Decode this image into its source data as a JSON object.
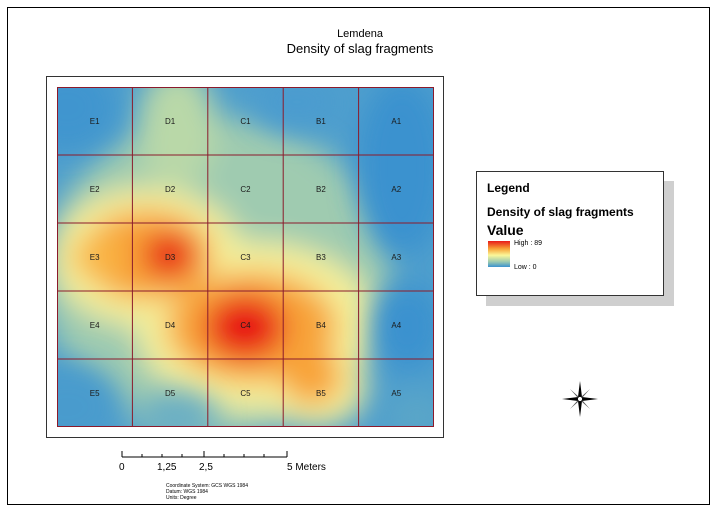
{
  "map": {
    "title": "Lemdena",
    "subtitle": "Density of slag fragments",
    "grid": {
      "rows": [
        [
          "E1",
          "D1",
          "C1",
          "B1",
          "A1"
        ],
        [
          "E2",
          "D2",
          "C2",
          "B2",
          "A2"
        ],
        [
          "E3",
          "D3",
          "C3",
          "B3",
          "A3"
        ],
        [
          "E4",
          "D4",
          "C4",
          "B4",
          "A4"
        ],
        [
          "E5",
          "D5",
          "C5",
          "B5",
          "A5"
        ]
      ]
    },
    "density_peaks": [
      {
        "cell": "C4",
        "level": "high"
      },
      {
        "cell": "D3",
        "level": "high"
      },
      {
        "cell": "E3",
        "level": "medium"
      },
      {
        "cell": "B4",
        "level": "medium"
      },
      {
        "cell": "B5",
        "level": "medium"
      }
    ],
    "colors": {
      "high": "#e81919",
      "mid_high": "#f8a337",
      "mid": "#faf79a",
      "mid_low": "#9ccab0",
      "low": "#3a92cf",
      "grid_line": "#8b1a2b"
    }
  },
  "legend": {
    "title": "Legend",
    "layer_name": "Density of slag fragments",
    "field": "Value",
    "high_label": "High : 89",
    "low_label": "Low : 0"
  },
  "scalebar": {
    "labels": [
      "0",
      "1,25",
      "2,5",
      "5 Meters"
    ]
  },
  "coordinate_info": {
    "line1": "Coordinate System: GCS WGS 1984",
    "line2": "Datum: WGS 1984",
    "line3": "Units: Degree"
  },
  "north_arrow": {
    "icon": "compass-rose-icon"
  }
}
